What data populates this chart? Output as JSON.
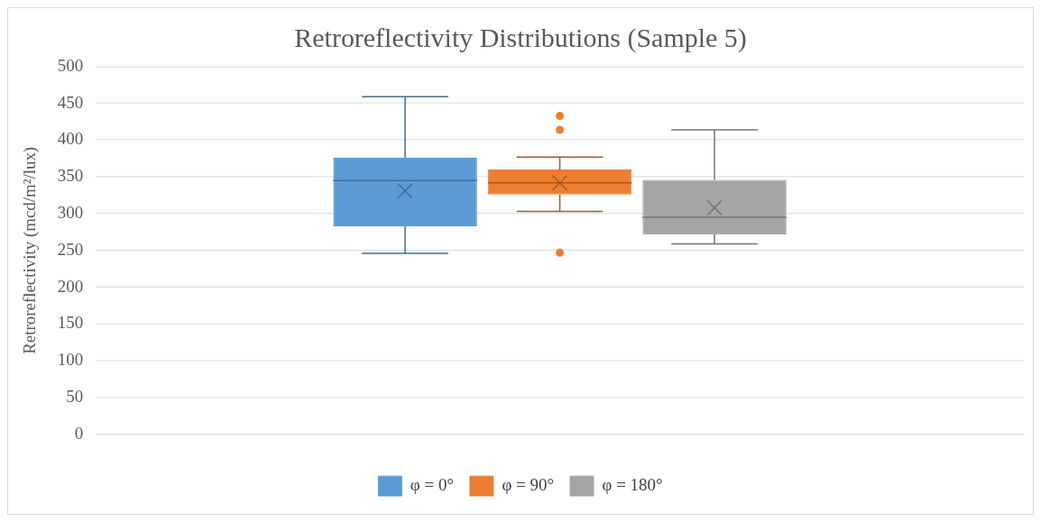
{
  "chart_data": {
    "type": "box",
    "title": "Retroreflectivity Distributions (Sample 5)",
    "ylabel": "Retroreflectivity (mcd/m²/lux)",
    "categories": [
      null
    ],
    "series": [
      {
        "name": "φ = 0°",
        "color": "#5b9bd5",
        "boxes": [
          {
            "low": 246,
            "q1": 283,
            "median": 345,
            "q3": 376,
            "high": 459,
            "mean": 331
          }
        ]
      },
      {
        "name": "φ = 90°",
        "color": "#ed7d31",
        "boxes": [
          {
            "low": 303,
            "q1": 326,
            "median": 342,
            "q3": 360,
            "high": 377,
            "mean": 342,
            "outliers": [
              433,
              414,
              247
            ]
          }
        ]
      },
      {
        "name": "φ = 180°",
        "color": "#a5a5a5",
        "boxes": [
          {
            "low": 259,
            "q1": 272,
            "median": 295,
            "q3": 346,
            "high": 414,
            "mean": 308
          }
        ]
      }
    ],
    "ylim": [
      0,
      500
    ],
    "yticks": [
      0,
      50,
      100,
      150,
      200,
      250,
      300,
      350,
      400,
      450,
      500
    ],
    "grid": "y",
    "legend": "bottom"
  }
}
